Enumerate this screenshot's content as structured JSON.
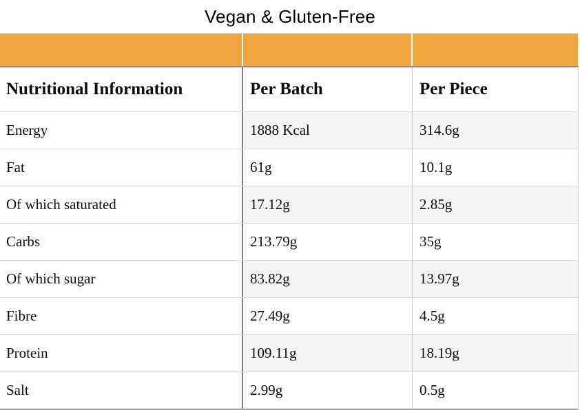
{
  "title": "Vegan & Gluten-Free",
  "colors": {
    "accent": "#efa63c",
    "stripe": "#f5f5f3",
    "dark_divider": "#7d7d7d",
    "row_border": "#d6d6d6"
  },
  "table": {
    "columns": [
      "Nutritional Information",
      "Per Batch",
      "Per Piece"
    ],
    "rows": [
      {
        "label": "Energy",
        "per_batch": "1888 Kcal",
        "per_piece": "314.6g"
      },
      {
        "label": "Fat",
        "per_batch": "61g",
        "per_piece": "10.1g"
      },
      {
        "label": "Of which saturated",
        "per_batch": "17.12g",
        "per_piece": "2.85g"
      },
      {
        "label": "Carbs",
        "per_batch": "213.79g",
        "per_piece": "35g"
      },
      {
        "label": "Of which sugar",
        "per_batch": "83.82g",
        "per_piece": "13.97g"
      },
      {
        "label": "Fibre",
        "per_batch": "27.49g",
        "per_piece": "4.5g"
      },
      {
        "label": "Protein",
        "per_batch": "109.11g",
        "per_piece": "18.19g"
      },
      {
        "label": "Salt",
        "per_batch": "2.99g",
        "per_piece": "0.5g"
      }
    ]
  }
}
